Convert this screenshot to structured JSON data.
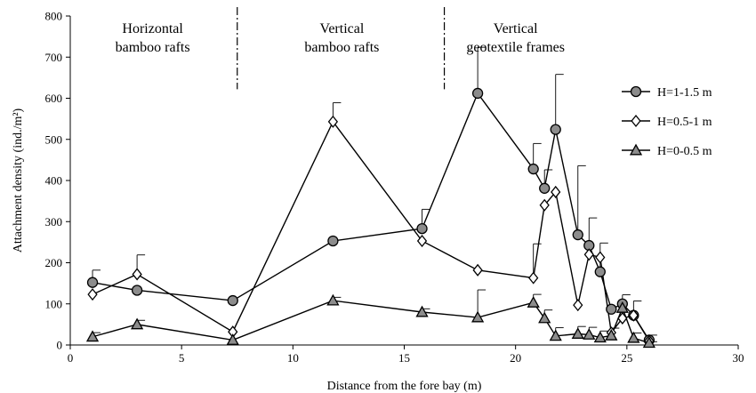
{
  "chart_data": {
    "type": "line",
    "xlabel": "Distance from the fore bay (m)",
    "ylabel": "Attachment density (ind./m²)",
    "xlim": [
      0,
      30
    ],
    "ylim": [
      0,
      800
    ],
    "xticks": [
      0,
      5,
      10,
      15,
      20,
      25,
      30
    ],
    "yticks": [
      0,
      100,
      200,
      300,
      400,
      500,
      600,
      700,
      800
    ],
    "grid": false,
    "legend_position": "right",
    "zones": [
      {
        "lines": [
          "Horizontal",
          "bamboo rafts"
        ],
        "center_x": 3.7
      },
      {
        "lines": [
          "Vertical",
          "bamboo rafts"
        ],
        "center_x": 12.2
      },
      {
        "lines": [
          "Vertical",
          "geotextile frames"
        ],
        "center_x": 20.0
      }
    ],
    "dividers_x": [
      7.5,
      16.8
    ],
    "series": [
      {
        "name": "H=1-1.5 m",
        "marker": "circle",
        "fill": "#8c8c8c",
        "x": [
          1,
          3,
          7.3,
          11.8,
          15.8,
          18.3,
          20.8,
          21.3,
          21.8,
          22.8,
          23.3,
          23.8,
          24.3,
          24.8,
          25.3,
          26
        ],
        "y": [
          152,
          133,
          108,
          253,
          283,
          612,
          428,
          381,
          524,
          268,
          242,
          178,
          87,
          100,
          72,
          12
        ],
        "err": [
          30,
          0,
          0,
          0,
          47,
          112,
          62,
          45,
          134,
          168,
          67,
          70,
          0,
          22,
          35,
          12
        ]
      },
      {
        "name": "H=0.5-1 m",
        "marker": "diamond",
        "fill": "#ffffff",
        "x": [
          1,
          3,
          7.3,
          11.8,
          15.8,
          18.3,
          20.8,
          21.3,
          21.8,
          22.8,
          23.3,
          23.8,
          24.3,
          24.8,
          25.3,
          26
        ],
        "y": [
          123,
          172,
          32,
          543,
          253,
          182,
          163,
          340,
          372,
          97,
          220,
          213,
          30,
          65,
          72,
          10
        ],
        "err": [
          0,
          47,
          0,
          46,
          0,
          0,
          83,
          0,
          0,
          0,
          0,
          0,
          0,
          0,
          0,
          0
        ]
      },
      {
        "name": "H=0-0.5 m",
        "marker": "triangle",
        "fill": "#8c8c8c",
        "x": [
          1,
          3,
          7.3,
          11.8,
          15.8,
          18.3,
          20.8,
          21.3,
          21.8,
          22.8,
          23.3,
          23.8,
          24.3,
          24.8,
          25.3,
          26
        ],
        "y": [
          20,
          50,
          12,
          108,
          80,
          67,
          103,
          65,
          22,
          27,
          25,
          18,
          23,
          90,
          17,
          5
        ],
        "err": [
          10,
          10,
          0,
          8,
          8,
          67,
          20,
          20,
          20,
          18,
          18,
          16,
          18,
          0,
          12,
          3
        ]
      }
    ]
  }
}
